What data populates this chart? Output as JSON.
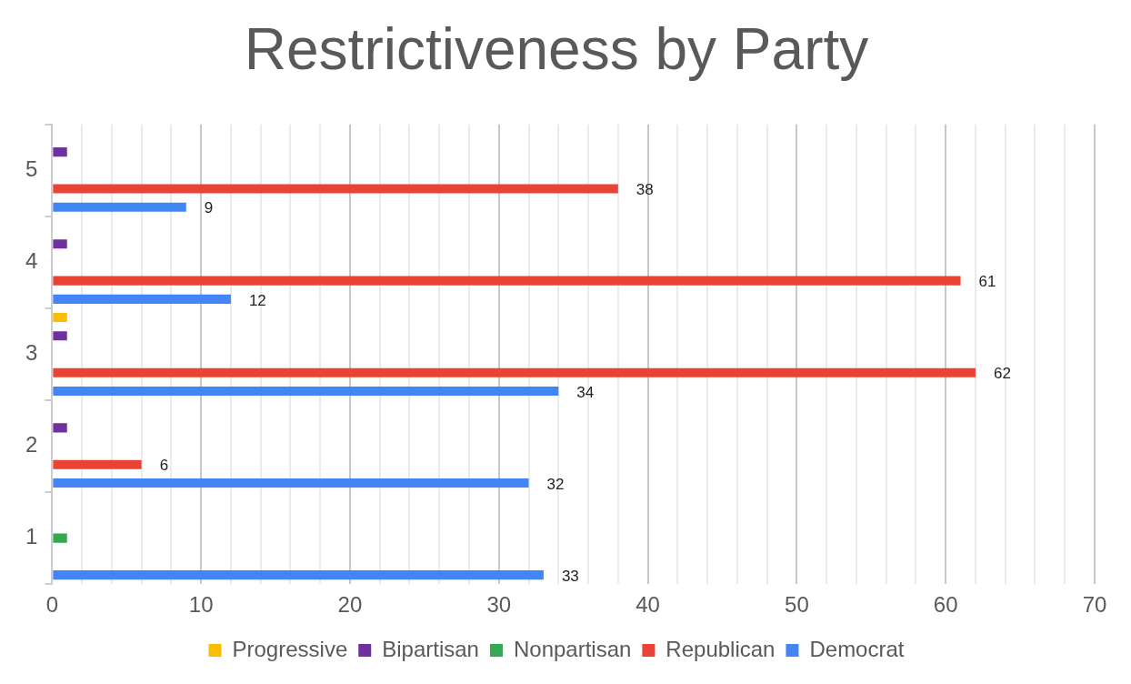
{
  "chart_data": {
    "type": "bar",
    "orientation": "horizontal",
    "title": "Restrictiveness by Party",
    "categories": [
      "5",
      "4",
      "3",
      "2",
      "1"
    ],
    "series": [
      {
        "name": "Progressive",
        "color": "#fbbc04",
        "values": [
          null,
          null,
          1,
          null,
          null
        ]
      },
      {
        "name": "Bipartisan",
        "color": "#7030a0",
        "values": [
          1,
          1,
          1,
          1,
          null
        ]
      },
      {
        "name": "Nonpartisan",
        "color": "#34a853",
        "values": [
          null,
          null,
          null,
          null,
          1
        ]
      },
      {
        "name": "Republican",
        "color": "#ea4335",
        "values": [
          38,
          61,
          62,
          6,
          null
        ],
        "value_labels": [
          "38",
          "61",
          "62",
          "6",
          null
        ]
      },
      {
        "name": "Democrat",
        "color": "#4285f4",
        "values": [
          9,
          12,
          34,
          32,
          33
        ],
        "value_labels": [
          "9",
          "12",
          "34",
          "32",
          "33"
        ]
      }
    ],
    "xlim": [
      0,
      70
    ],
    "xticks": [
      0,
      {
        "value": 2,
        "label": null
      },
      {
        "value": 4,
        "label": null
      },
      {
        "value": 6,
        "label": null
      },
      {
        "value": 8,
        "label": null
      },
      10,
      {
        "value": 12,
        "label": null
      },
      {
        "value": 14,
        "label": null
      },
      {
        "value": 16,
        "label": null
      },
      {
        "value": 18,
        "label": null
      },
      20,
      {
        "value": 22,
        "label": null
      },
      {
        "value": 24,
        "label": null
      },
      {
        "value": 26,
        "label": null
      },
      {
        "value": 28,
        "label": null
      },
      30,
      {
        "value": 32,
        "label": null
      },
      {
        "value": 34,
        "label": null
      },
      {
        "value": 36,
        "label": null
      },
      {
        "value": 38,
        "label": null
      },
      40,
      {
        "value": 42,
        "label": null
      },
      {
        "value": 44,
        "label": null
      },
      {
        "value": 46,
        "label": null
      },
      {
        "value": 48,
        "label": null
      },
      50,
      {
        "value": 52,
        "label": null
      },
      {
        "value": 54,
        "label": null
      },
      {
        "value": 56,
        "label": null
      },
      {
        "value": 58,
        "label": null
      },
      60,
      {
        "value": 62,
        "label": null
      },
      {
        "value": 64,
        "label": null
      },
      {
        "value": 66,
        "label": null
      },
      {
        "value": 68,
        "label": null
      },
      70
    ],
    "grid": "x",
    "legend": "bottom"
  }
}
